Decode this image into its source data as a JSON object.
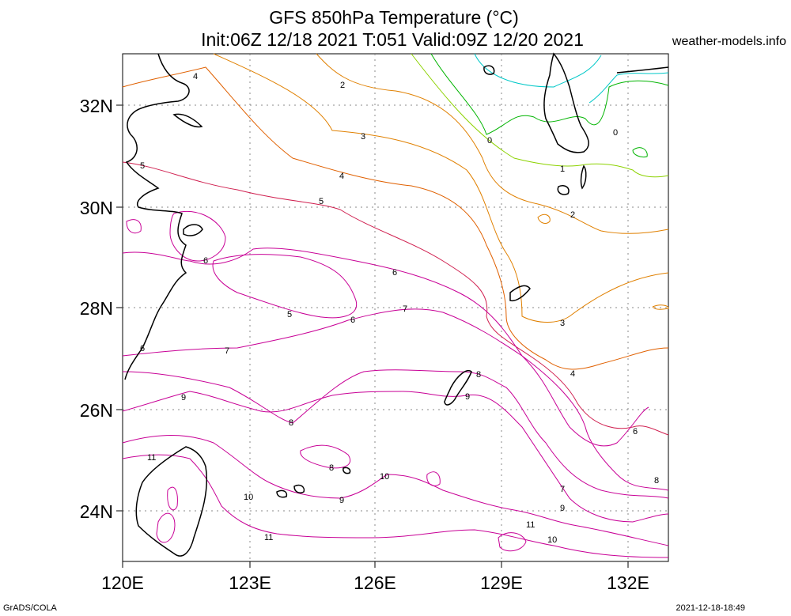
{
  "header": {
    "title_line1": "GFS 850hPa Temperature (°C)",
    "title_line2": "Init:06Z 12/18 2021 T:051 Valid:09Z 12/20 2021",
    "site": "weather-models.info"
  },
  "footer": {
    "software": "GrADS/COLA",
    "timestamp": "2021-12-18-18:49"
  },
  "map": {
    "lon_range": [
      120,
      133
    ],
    "lat_range": [
      23,
      33
    ],
    "lat_labels": [
      "24N",
      "26N",
      "28N",
      "30N",
      "32N"
    ],
    "lon_labels": [
      "120E",
      "123E",
      "126E",
      "129E",
      "132E"
    ],
    "grid": "dotted",
    "contour_levels": [
      "0",
      "1",
      "2",
      "3",
      "4",
      "5",
      "6",
      "7",
      "8",
      "9",
      "10",
      "11"
    ],
    "colors": {
      "c0": "#00c8c8",
      "c1": "#00b400",
      "c2": "#8cd200",
      "c3": "#e08000",
      "c4": "#e06000",
      "c5": "#d02050",
      "c6": "#c80096",
      "c7": "#c80096",
      "coast": "#000000"
    }
  }
}
